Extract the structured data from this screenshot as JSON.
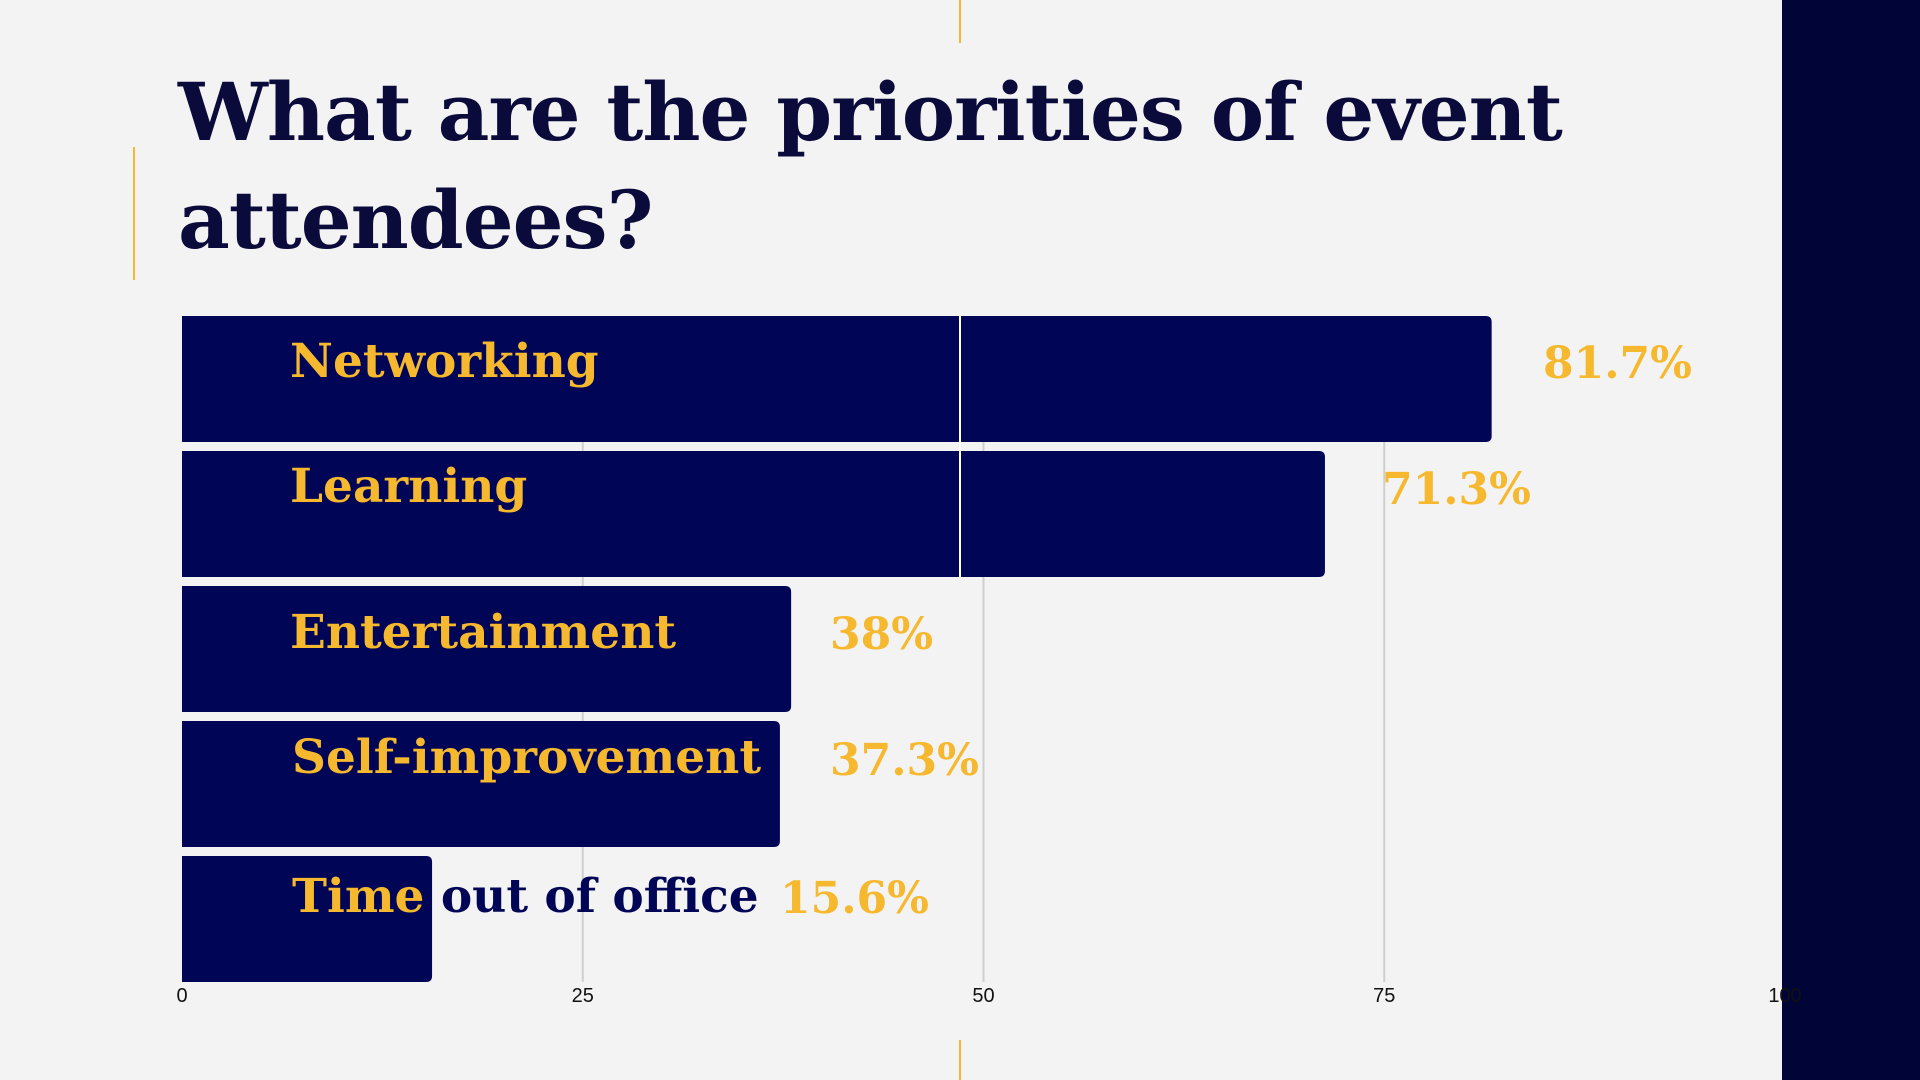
{
  "title": "What are the priorities of event attendees?",
  "colors": {
    "background": "#f3f3f3",
    "bar": "#000556",
    "accent": "#f5b82e",
    "title": "#0b0b3b",
    "panel": "#000437",
    "grid": "#cfcfcf"
  },
  "chart_data": {
    "type": "bar",
    "orientation": "horizontal",
    "title": "What are the priorities of event attendees?",
    "categories": [
      "Networking",
      "Learning",
      "Entertainment",
      "Self-improvement",
      "Time out of office"
    ],
    "values": [
      81.7,
      71.3,
      38,
      37.3,
      15.6
    ],
    "value_labels": [
      "81.7%",
      "71.3%",
      "38%",
      "37.3%",
      "15.6%"
    ],
    "x_ticks": [
      "0",
      "25",
      "50",
      "75",
      "100"
    ],
    "xlim": [
      0,
      100
    ],
    "xlabel": "",
    "ylabel": "",
    "grid": true,
    "legend": "none"
  }
}
